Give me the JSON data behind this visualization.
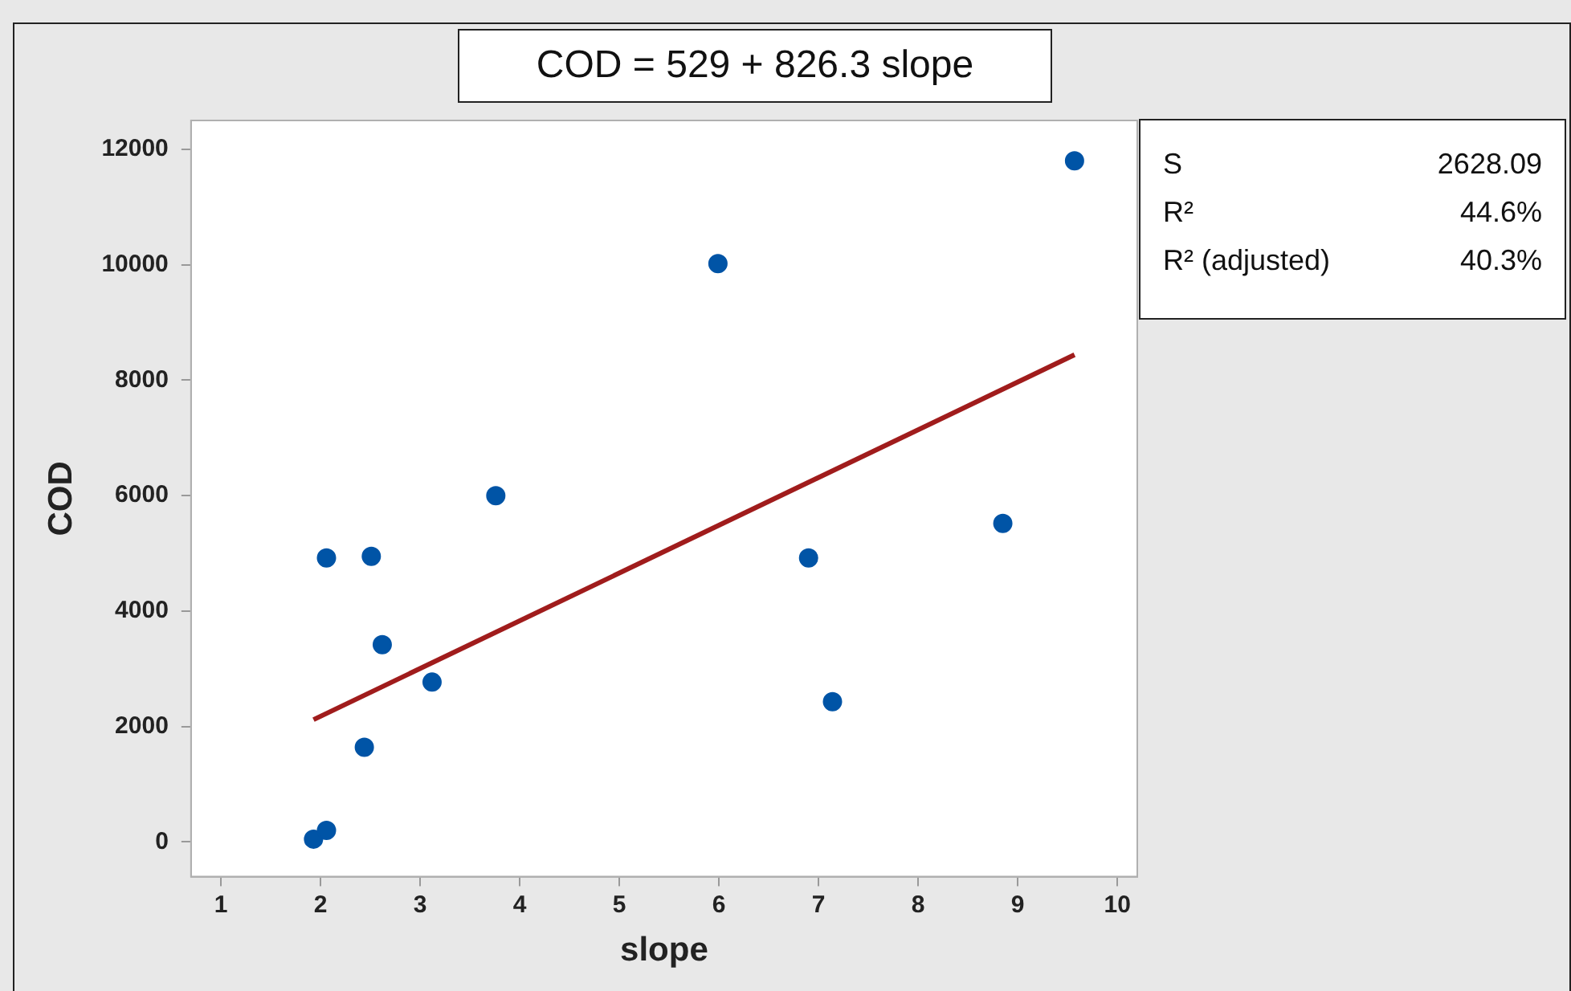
{
  "chart_data": {
    "type": "scatter",
    "title": "COD = 529 + 826.3 slope",
    "xlabel": "slope",
    "ylabel": "COD",
    "xlim": [
      0.7,
      10.2
    ],
    "xticks": [
      1,
      2,
      3,
      4,
      5,
      6,
      7,
      8,
      9,
      10
    ],
    "ylim": [
      -600,
      12500
    ],
    "yticks": [
      0,
      2000,
      4000,
      6000,
      8000,
      10000,
      12000
    ],
    "grid": false,
    "legend": false,
    "annotations": [
      "S 2628.09",
      "R² 44.6%",
      "R² (adjusted) 40.3%"
    ],
    "series": [
      {
        "marker": "circle",
        "color": "#0054a6",
        "x": [
          1.93,
          2.06,
          2.06,
          2.44,
          2.51,
          2.62,
          3.12,
          3.76,
          5.99,
          6.9,
          7.14,
          8.85,
          9.57
        ],
        "values": [
          50,
          200,
          4920,
          1640,
          4950,
          3420,
          2770,
          6000,
          10020,
          4920,
          2430,
          5520,
          11800
        ]
      },
      {
        "type": "line",
        "marker": "none",
        "color": "#a01c1c",
        "x": [
          1.93,
          9.57
        ],
        "values": [
          2120,
          8440
        ]
      }
    ]
  }
}
